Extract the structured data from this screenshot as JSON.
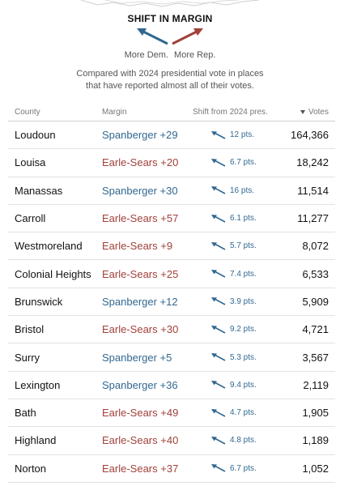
{
  "legend": {
    "title": "SHIFT IN MARGIN",
    "more_dem": "More Dem.",
    "more_rep": "More Rep.",
    "note_line1": "Compared with 2024 presidential vote in places",
    "note_line2": "that have reported almost all of their votes."
  },
  "colors": {
    "dem": "#326891",
    "rep": "#a0413a"
  },
  "table": {
    "headers": {
      "county": "County",
      "margin": "Margin",
      "shift": "Shift from 2024 pres.",
      "votes": "Votes"
    },
    "sort_icon": "triangle-down-icon",
    "rows": [
      {
        "county": "Loudoun",
        "margin": "Spanberger +29",
        "party": "dem",
        "shift": "12 pts.",
        "votes": "164,366"
      },
      {
        "county": "Louisa",
        "margin": "Earle-Sears +20",
        "party": "rep",
        "shift": "6.7 pts.",
        "votes": "18,242"
      },
      {
        "county": "Manassas",
        "margin": "Spanberger +30",
        "party": "dem",
        "shift": "16 pts.",
        "votes": "11,514"
      },
      {
        "county": "Carroll",
        "margin": "Earle-Sears +57",
        "party": "rep",
        "shift": "6.1 pts.",
        "votes": "11,277"
      },
      {
        "county": "Westmoreland",
        "margin": "Earle-Sears +9",
        "party": "rep",
        "shift": "5.7 pts.",
        "votes": "8,072"
      },
      {
        "county": "Colonial Heights",
        "margin": "Earle-Sears +25",
        "party": "rep",
        "shift": "7.4 pts.",
        "votes": "6,533"
      },
      {
        "county": "Brunswick",
        "margin": "Spanberger +12",
        "party": "dem",
        "shift": "3.9 pts.",
        "votes": "5,909"
      },
      {
        "county": "Bristol",
        "margin": "Earle-Sears +30",
        "party": "rep",
        "shift": "9.2 pts.",
        "votes": "4,721"
      },
      {
        "county": "Surry",
        "margin": "Spanberger +5",
        "party": "dem",
        "shift": "5.3 pts.",
        "votes": "3,567"
      },
      {
        "county": "Lexington",
        "margin": "Spanberger +36",
        "party": "dem",
        "shift": "9.4 pts.",
        "votes": "2,119"
      },
      {
        "county": "Bath",
        "margin": "Earle-Sears +49",
        "party": "rep",
        "shift": "4.7 pts.",
        "votes": "1,905"
      },
      {
        "county": "Highland",
        "margin": "Earle-Sears +40",
        "party": "rep",
        "shift": "4.8 pts.",
        "votes": "1,189"
      },
      {
        "county": "Norton",
        "margin": "Earle-Sears +37",
        "party": "rep",
        "shift": "6.7 pts.",
        "votes": "1,052"
      }
    ]
  }
}
